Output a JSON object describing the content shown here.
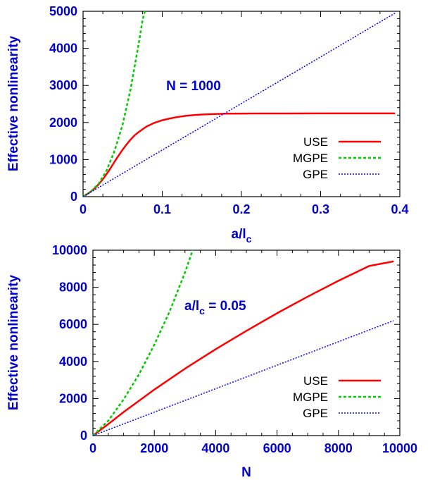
{
  "chart_data": [
    {
      "type": "line",
      "xlabel": "a/l",
      "xlabel_sub": "c",
      "ylabel": "Effective nonlinearity",
      "xlim": [
        0,
        0.4
      ],
      "ylim": [
        0,
        5000
      ],
      "x_ticks": [
        0,
        0.1,
        0.2,
        0.3,
        0.4
      ],
      "x_tick_labels": [
        "0",
        "0.1",
        "0.2",
        "0.3",
        "0.4"
      ],
      "y_ticks": [
        0,
        1000,
        2000,
        3000,
        4000,
        5000
      ],
      "y_tick_labels": [
        "0",
        "1000",
        "2000",
        "3000",
        "4000",
        "5000"
      ],
      "annotation": "N = 1000",
      "grid": false,
      "legend_position": "right",
      "series": [
        {
          "name": "USE",
          "color": "#ff0000",
          "style": "solid",
          "x": [
            0,
            0.005,
            0.01,
            0.015,
            0.02,
            0.025,
            0.03,
            0.035,
            0.04,
            0.045,
            0.05,
            0.055,
            0.06,
            0.065,
            0.07,
            0.08,
            0.09,
            0.1,
            0.11,
            0.12,
            0.13,
            0.14,
            0.15,
            0.16,
            0.17,
            0.18,
            0.2,
            0.22,
            0.25,
            0.3,
            0.35,
            0.394
          ],
          "y": [
            0,
            65,
            140,
            230,
            340,
            470,
            620,
            780,
            950,
            1110,
            1270,
            1410,
            1540,
            1650,
            1740,
            1890,
            1990,
            2060,
            2110,
            2150,
            2180,
            2200,
            2215,
            2225,
            2232,
            2237,
            2241,
            2243,
            2244,
            2245,
            2245,
            2245
          ]
        },
        {
          "name": "MGPE",
          "color": "#00cc00",
          "style": "dashed",
          "x": [
            0,
            0.01,
            0.02,
            0.03,
            0.04,
            0.05,
            0.06,
            0.07,
            0.075,
            0.078
          ],
          "y": [
            0,
            140,
            360,
            720,
            1250,
            1950,
            2900,
            4100,
            4750,
            5000
          ]
        },
        {
          "name": "GPE",
          "color": "#0000ff",
          "style": "dotted",
          "x": [
            0,
            0.394
          ],
          "y": [
            0,
            4950
          ]
        }
      ]
    },
    {
      "type": "line",
      "xlabel": "N",
      "ylabel": "Effective nonlinearity",
      "xlim": [
        0,
        10000
      ],
      "ylim": [
        0,
        10000
      ],
      "x_ticks": [
        0,
        2000,
        4000,
        6000,
        8000,
        10000
      ],
      "x_tick_labels": [
        "0",
        "2000",
        "4000",
        "6000",
        "8000",
        "10000"
      ],
      "y_ticks": [
        0,
        2000,
        4000,
        6000,
        8000,
        10000
      ],
      "y_tick_labels": [
        "0",
        "2000",
        "4000",
        "6000",
        "8000",
        "10000"
      ],
      "annotation_prefix": "a/l",
      "annotation_sub": "c",
      "annotation_suffix": " = 0.05",
      "grid": false,
      "legend_position": "bottom-right",
      "series": [
        {
          "name": "USE",
          "color": "#ff0000",
          "style": "solid",
          "x": [
            0,
            500,
            1000,
            2000,
            3000,
            4000,
            5000,
            6000,
            7000,
            8000,
            9000,
            9800
          ],
          "y": [
            0,
            620,
            1270,
            2480,
            3610,
            4660,
            5650,
            6600,
            7500,
            8350,
            9150,
            9400
          ]
        },
        {
          "name": "MGPE",
          "color": "#00cc00",
          "style": "dashed",
          "x": [
            0,
            500,
            1000,
            1500,
            2000,
            2500,
            3000,
            3250
          ],
          "y": [
            0,
            800,
            1950,
            3300,
            4900,
            6700,
            8800,
            10000
          ]
        },
        {
          "name": "GPE",
          "color": "#0000ff",
          "style": "dotted",
          "x": [
            0,
            9800
          ],
          "y": [
            0,
            6200
          ]
        }
      ]
    }
  ]
}
